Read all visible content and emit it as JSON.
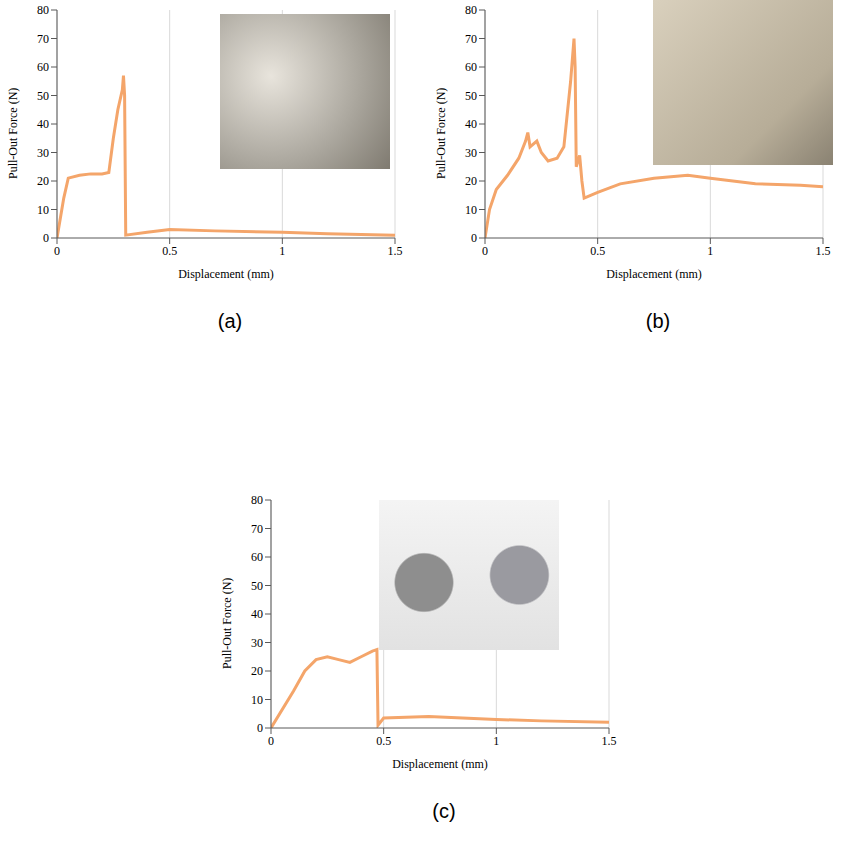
{
  "chart_data": [
    {
      "type": "line",
      "title": "(a)",
      "x_label": "Displacement (mm)",
      "y_label": "Pull-Out Force (N)",
      "x": [
        0,
        0.03,
        0.05,
        0.1,
        0.15,
        0.2,
        0.23,
        0.25,
        0.27,
        0.29,
        0.295,
        0.3,
        0.305,
        0.4,
        0.5,
        0.7,
        1,
        1.2,
        1.5
      ],
      "values": [
        0,
        14,
        21,
        22,
        22.5,
        22.5,
        23,
        35,
        45,
        52,
        57,
        50,
        1,
        2,
        3,
        2.5,
        2,
        1.5,
        1
      ],
      "color": "#f4a56a",
      "xlim": [
        0,
        1.5
      ],
      "xticks": [
        0,
        0.5,
        1,
        1.5
      ],
      "ylim": [
        0,
        80
      ],
      "yticks": [
        0,
        10,
        20,
        30,
        40,
        50,
        60,
        70,
        80
      ],
      "grid": true
    },
    {
      "type": "line",
      "title": "(b)",
      "x_label": "Displacement (mm)",
      "y_label": "Pull-Out Force (N)",
      "x": [
        0,
        0.02,
        0.05,
        0.1,
        0.15,
        0.18,
        0.19,
        0.2,
        0.23,
        0.25,
        0.28,
        0.32,
        0.35,
        0.38,
        0.395,
        0.4,
        0.405,
        0.42,
        0.43,
        0.44,
        0.5,
        0.6,
        0.75,
        0.9,
        1,
        1.2,
        1.4,
        1.5
      ],
      "values": [
        0,
        10,
        17,
        22,
        28,
        34,
        37,
        32,
        34,
        30,
        27,
        28,
        32,
        55,
        70,
        60,
        25,
        29,
        20,
        14,
        16,
        19,
        21,
        22,
        21,
        19,
        18.5,
        18
      ],
      "color": "#f4a56a",
      "xlim": [
        0,
        1.5
      ],
      "xticks": [
        0,
        0.5,
        1,
        1.5
      ],
      "ylim": [
        0,
        80
      ],
      "yticks": [
        0,
        10,
        20,
        30,
        40,
        50,
        60,
        70,
        80
      ],
      "grid": true
    },
    {
      "type": "line",
      "title": "(c)",
      "x_label": "Displacement (mm)",
      "y_label": "Pull-Out Force (N)",
      "x": [
        0,
        0.1,
        0.15,
        0.2,
        0.25,
        0.3,
        0.35,
        0.4,
        0.45,
        0.47,
        0.475,
        0.5,
        0.7,
        1,
        1.2,
        1.5
      ],
      "values": [
        0,
        13,
        20,
        24,
        25,
        24,
        23,
        25,
        27,
        27.5,
        1,
        3.5,
        4,
        3,
        2.5,
        2
      ],
      "color": "#f4a56a",
      "xlim": [
        0,
        1.5
      ],
      "xticks": [
        0,
        0.5,
        1,
        1.5
      ],
      "ylim": [
        0,
        80
      ],
      "yticks": [
        0,
        10,
        20,
        30,
        40,
        50,
        60,
        70,
        80
      ],
      "grid": true
    }
  ]
}
